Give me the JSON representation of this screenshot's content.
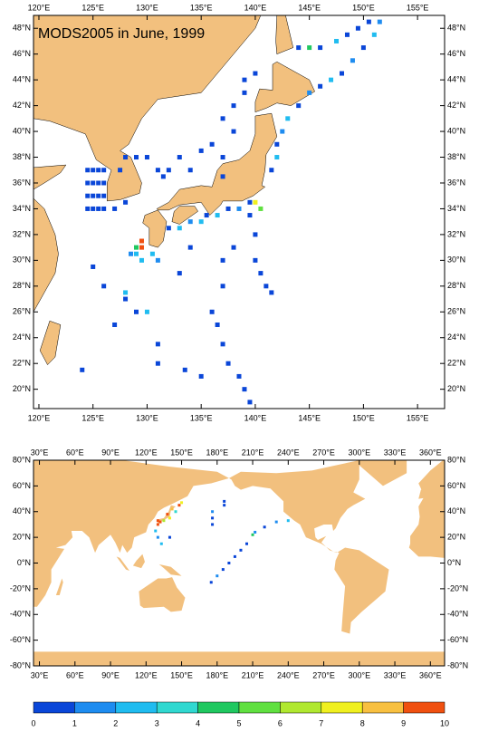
{
  "panels": [
    {
      "title": "MODS2005 in June, 1999",
      "xlim": [
        119.5,
        157.5
      ],
      "ylim": [
        18.5,
        49
      ],
      "xticks": [
        {
          "value": 120,
          "label": "120°E"
        },
        {
          "value": 125,
          "label": "125°E"
        },
        {
          "value": 130,
          "label": "130°E"
        },
        {
          "value": 135,
          "label": "135°E"
        },
        {
          "value": 140,
          "label": "140°E"
        },
        {
          "value": 145,
          "label": "145°E"
        },
        {
          "value": 150,
          "label": "150°E"
        },
        {
          "value": 155,
          "label": "155°E"
        }
      ],
      "yticks": [
        {
          "value": 20,
          "label": "20°N"
        },
        {
          "value": 22,
          "label": "22°N"
        },
        {
          "value": 24,
          "label": "24°N"
        },
        {
          "value": 26,
          "label": "26°N"
        },
        {
          "value": 28,
          "label": "28°N"
        },
        {
          "value": 30,
          "label": "30°N"
        },
        {
          "value": 32,
          "label": "32°N"
        },
        {
          "value": 34,
          "label": "34°N"
        },
        {
          "value": 36,
          "label": "36°N"
        },
        {
          "value": 38,
          "label": "38°N"
        },
        {
          "value": 40,
          "label": "40°N"
        },
        {
          "value": 42,
          "label": "42°N"
        },
        {
          "value": 44,
          "label": "44°N"
        },
        {
          "value": 46,
          "label": "46°N"
        },
        {
          "value": 48,
          "label": "48°N"
        }
      ],
      "points": {
        "lon": [
          124.5,
          125,
          125.5,
          126,
          124.5,
          125,
          125.5,
          126,
          124.5,
          125,
          125.5,
          126,
          124.5,
          125,
          125.5,
          126,
          127,
          128,
          127.5,
          128,
          129,
          130,
          131,
          131.5,
          129.5,
          129.5,
          129,
          129,
          129.5,
          128.5,
          130.5,
          131,
          132,
          133,
          134,
          135,
          135.5,
          136.5,
          137.5,
          138.5,
          139.5,
          140,
          140.5,
          139.5,
          132,
          133,
          134,
          135,
          136,
          137,
          138,
          137,
          139,
          139,
          138,
          137,
          141.5,
          142,
          142,
          142.5,
          143,
          144,
          145,
          146,
          147,
          148,
          149,
          150,
          151,
          151.5,
          150.5,
          149.5,
          148.5,
          147.5,
          146,
          145,
          144,
          140,
          140,
          140,
          140.5,
          141,
          141.5,
          138,
          137,
          137,
          136,
          136.5,
          137,
          137.5,
          138.5,
          139,
          139.5,
          134,
          133,
          125,
          126,
          127,
          128,
          129,
          131,
          131,
          133.5,
          135,
          124,
          128,
          130
        ],
        "lat": [
          37,
          37,
          37,
          37,
          36,
          36,
          36,
          36,
          35,
          35,
          35,
          35,
          34,
          34,
          34,
          34,
          34,
          34.5,
          37,
          38,
          38,
          38,
          37,
          36.5,
          31.5,
          31,
          31,
          30.5,
          30,
          30.5,
          30.5,
          30,
          32.5,
          32.5,
          33,
          33,
          33.5,
          33.5,
          34,
          34,
          34.5,
          34.5,
          34,
          33.5,
          37,
          38,
          37,
          38.5,
          39,
          38,
          40,
          41,
          43,
          44,
          42,
          36.5,
          37,
          38,
          39,
          40,
          41,
          42,
          43,
          43.5,
          44,
          44.5,
          45.5,
          46.5,
          47.5,
          48.5,
          48.5,
          48,
          47.5,
          47,
          46.5,
          46.5,
          46.5,
          44.5,
          32,
          30,
          29,
          28,
          27.5,
          31,
          30,
          28,
          26,
          25,
          23.5,
          22,
          21,
          20,
          19,
          31,
          29,
          29.5,
          28,
          25,
          27,
          26,
          23.5,
          22,
          21.5,
          21,
          21.5,
          27.5,
          26
        ],
        "count": [
          0.5,
          0.5,
          0.5,
          0.5,
          0.5,
          0.5,
          0.5,
          0.5,
          0.5,
          0.5,
          0.5,
          0.5,
          0.5,
          0.5,
          0.5,
          0.5,
          0.5,
          0.5,
          0.5,
          0.5,
          0.5,
          0.5,
          0.5,
          0.5,
          9.5,
          9.5,
          4.5,
          2.5,
          2.5,
          1.5,
          2.5,
          1.5,
          0.5,
          2.5,
          1.5,
          2.5,
          0.5,
          2.5,
          0.5,
          1.5,
          0.5,
          7.5,
          5.5,
          0.5,
          0.5,
          0.5,
          0.5,
          0.5,
          0.5,
          0.5,
          0.5,
          0.5,
          0.5,
          0.5,
          0.5,
          0.5,
          0.5,
          2.5,
          0.5,
          1.5,
          2.5,
          0.5,
          1.5,
          0.5,
          2.5,
          0.5,
          1.5,
          0.5,
          2.5,
          1.5,
          0.5,
          0.5,
          0.5,
          2.5,
          0.5,
          4.5,
          0.5,
          0.5,
          0.5,
          0.5,
          0.5,
          0.5,
          0.5,
          0.5,
          0.5,
          0.5,
          0.5,
          0.5,
          0.5,
          0.5,
          0.5,
          0.5,
          0.5,
          0.5,
          0.5,
          0.5,
          0.5,
          0.5,
          0.5,
          0.5,
          0.5,
          0.5,
          0.5,
          0.5,
          0.5,
          2.5,
          2.5
        ]
      }
    },
    {
      "xlim": [
        25,
        372
      ],
      "ylim": [
        -80,
        80
      ],
      "xticks": [
        {
          "value": 30,
          "label": "30°E"
        },
        {
          "value": 60,
          "label": "60°E"
        },
        {
          "value": 90,
          "label": "90°E"
        },
        {
          "value": 120,
          "label": "120°E"
        },
        {
          "value": 150,
          "label": "150°E"
        },
        {
          "value": 180,
          "label": "180°E"
        },
        {
          "value": 210,
          "label": "210°E"
        },
        {
          "value": 240,
          "label": "240°E"
        },
        {
          "value": 270,
          "label": "270°E"
        },
        {
          "value": 300,
          "label": "300°E"
        },
        {
          "value": 330,
          "label": "330°E"
        },
        {
          "value": 360,
          "label": "360°E"
        }
      ],
      "yticks": [
        {
          "value": 80,
          "label": "80°N"
        },
        {
          "value": 60,
          "label": "60°N"
        },
        {
          "value": 40,
          "label": "40°N"
        },
        {
          "value": 20,
          "label": "20°N"
        },
        {
          "value": 0,
          "label": "0°N"
        },
        {
          "value": -20,
          "label": "-20°N"
        },
        {
          "value": -40,
          "label": "-40°N"
        },
        {
          "value": -60,
          "label": "-60°N"
        },
        {
          "value": -80,
          "label": "-80°N"
        }
      ],
      "points": {
        "lon": [
          130,
          130,
          132,
          135,
          138,
          140,
          142,
          145,
          148,
          150,
          128,
          130,
          133,
          140,
          176,
          176,
          176,
          186,
          186,
          240,
          230,
          220,
          210,
          212,
          205,
          200,
          195,
          190,
          185,
          180,
          175
        ],
        "lat": [
          30,
          33,
          32,
          33,
          38,
          35,
          42,
          40,
          45,
          47,
          25,
          20,
          15,
          20,
          40,
          35,
          30,
          45,
          48,
          33,
          32,
          28,
          22,
          24,
          15,
          10,
          5,
          0,
          -5,
          -10,
          -15
        ],
        "count": [
          9.5,
          9.5,
          9.5,
          6.5,
          9.5,
          7.5,
          8.5,
          3.5,
          9.5,
          7.5,
          2.5,
          1.5,
          2.5,
          0.5,
          1.5,
          0.5,
          0.5,
          0.5,
          0.5,
          2.5,
          1.5,
          0.5,
          4.5,
          1.5,
          0.5,
          0.5,
          0.5,
          0.5,
          0.5,
          1.5,
          0.5
        ]
      }
    }
  ],
  "colorbar": {
    "ticks": [
      0,
      1,
      2,
      3,
      4,
      5,
      6,
      7,
      8,
      9,
      10
    ],
    "colors": [
      "#0a46d8",
      "#1e8cf0",
      "#20bcf0",
      "#30d8d0",
      "#20c860",
      "#60e040",
      "#b0e830",
      "#f0f020",
      "#f8c040",
      "#f05010"
    ]
  }
}
